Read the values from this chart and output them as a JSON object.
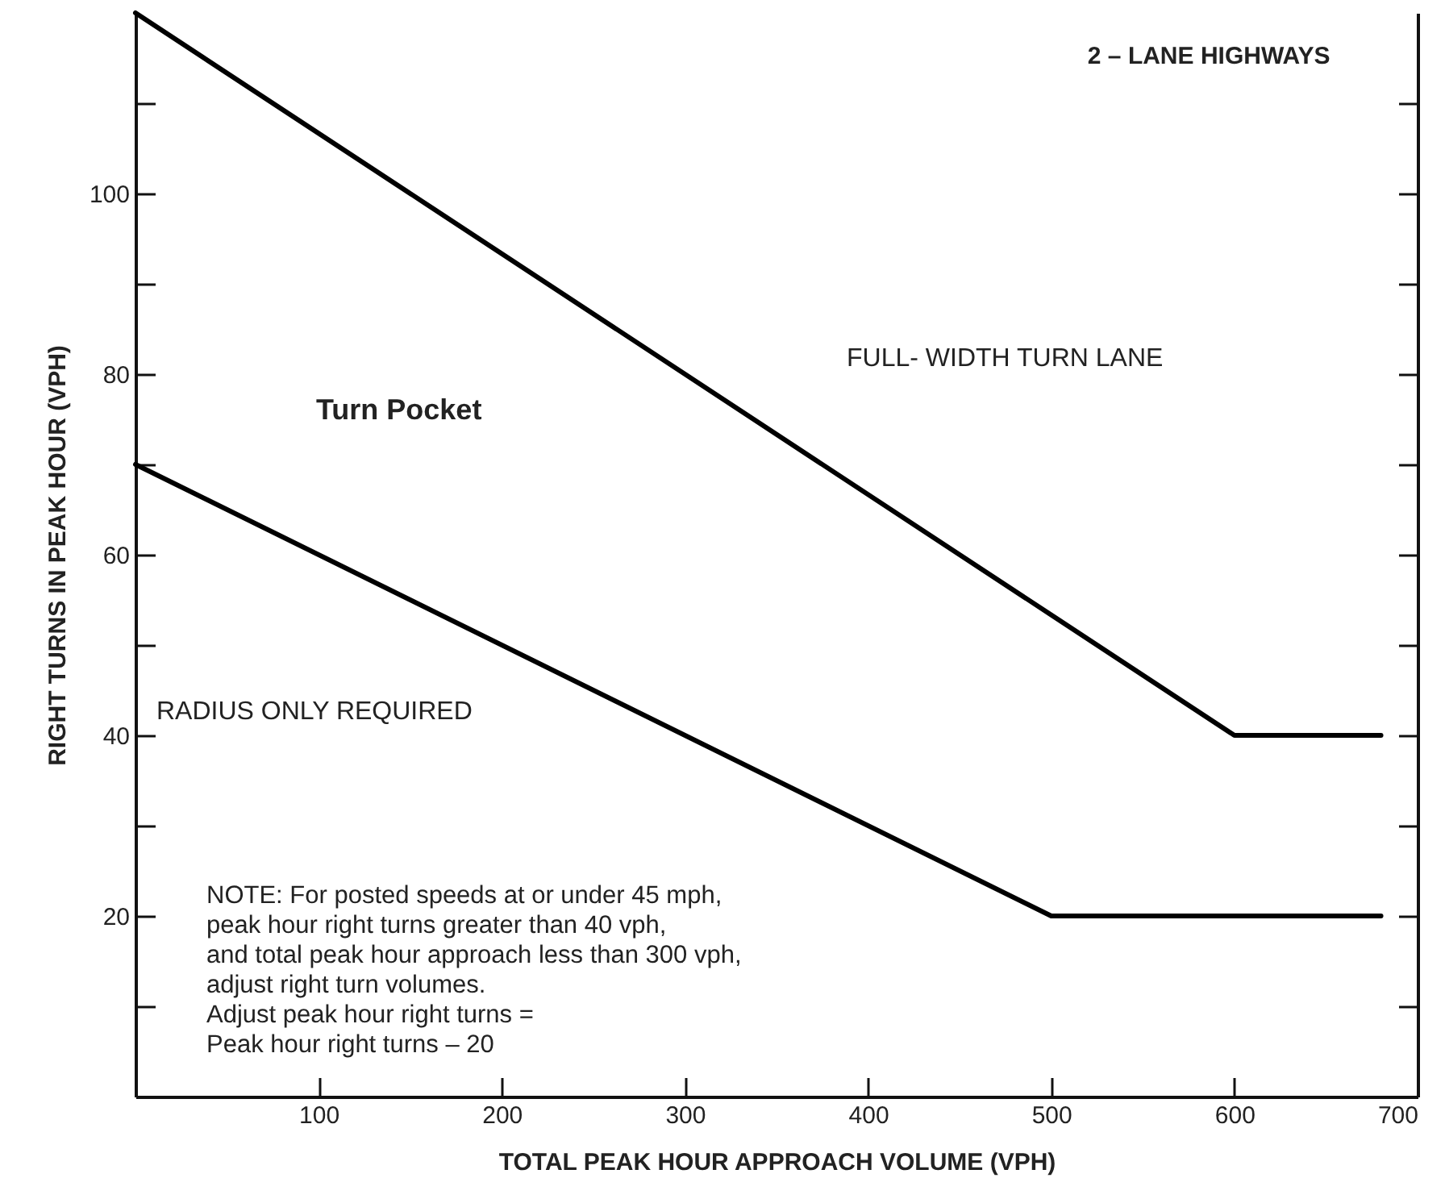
{
  "chart_data": {
    "type": "line",
    "title": "2 – LANE HIGHWAYS",
    "xlabel": "TOTAL PEAK HOUR APPROACH VOLUME (VPH)",
    "ylabel": "RIGHT TURNS IN PEAK HOUR (VPH)",
    "xlim": [
      0,
      700
    ],
    "ylim": [
      0,
      120
    ],
    "xticks": [
      100,
      200,
      300,
      400,
      500,
      600,
      700
    ],
    "yticks": [
      {
        "value": 10,
        "label": null
      },
      20,
      {
        "value": 30,
        "label": null
      },
      40,
      {
        "value": 50,
        "label": null
      },
      60,
      {
        "value": 70,
        "label": null
      },
      80,
      {
        "value": 90,
        "label": null
      },
      100,
      {
        "value": 110,
        "label": null
      }
    ],
    "series": [
      {
        "color": "#000000",
        "x": [
          0,
          600,
          680
        ],
        "values": [
          120,
          40,
          40
        ]
      },
      {
        "color": "#000000",
        "x": [
          0,
          500,
          680
        ],
        "values": [
          70,
          20,
          20
        ]
      }
    ],
    "annotations": [
      "FULL- WIDTH TURN LANE",
      "Turn Pocket",
      "RADIUS ONLY REQUIRED",
      "NOTE: For posted speeds at or under 45 mph,\n           peak hour right turns greater than 40 vph,\n           and total peak hour approach less than 300 vph,\n           adjust right turn volumes.\n           Adjust peak hour right turns =\n           Peak hour right turns – 20"
    ],
    "grid": false,
    "marker": "none",
    "line_style": "solid"
  }
}
